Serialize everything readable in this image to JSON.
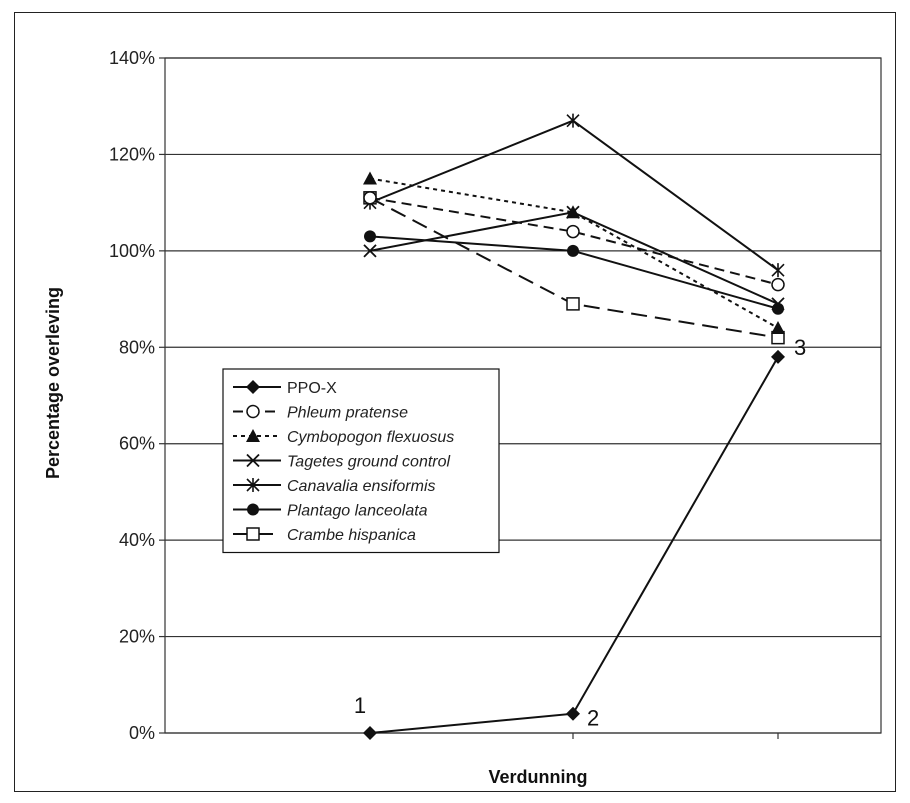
{
  "chart_data": {
    "type": "line",
    "xlabel": "Verdunning",
    "ylabel": "Percentage overleving",
    "x": [
      1,
      2,
      3
    ],
    "ylim": [
      0,
      140
    ],
    "yticks": [
      "0%",
      "20%",
      "40%",
      "60%",
      "80%",
      "100%",
      "120%",
      "140%"
    ],
    "grid": true,
    "legend_position": "center-left",
    "point_labels": [
      "1",
      "2",
      "3"
    ],
    "series": [
      {
        "name": "PPO-X",
        "values": [
          0,
          4,
          78
        ],
        "marker": "diamond-filled",
        "dash": "solid",
        "italic": false
      },
      {
        "name": "Phleum pratense",
        "values": [
          111,
          104,
          93
        ],
        "marker": "circle-open",
        "dash": "dash",
        "italic": true
      },
      {
        "name": "Cymbopogon flexuosus",
        "values": [
          115,
          108,
          84
        ],
        "marker": "triangle-filled",
        "dash": "dot",
        "italic": true
      },
      {
        "name": "Tagetes ground control",
        "values": [
          100,
          108,
          89
        ],
        "marker": "x",
        "dash": "solid",
        "italic": true
      },
      {
        "name": "Canavalia ensiformis",
        "values": [
          110,
          127,
          96
        ],
        "marker": "star",
        "dash": "solid",
        "italic": true
      },
      {
        "name": "Plantago lanceolata",
        "values": [
          103,
          100,
          88
        ],
        "marker": "circle-filled",
        "dash": "solid",
        "italic": true
      },
      {
        "name": "Crambe hispanica",
        "values": [
          111,
          89,
          82
        ],
        "marker": "square-open",
        "dash": "longdash",
        "italic": true
      }
    ]
  },
  "colors": {
    "line": "#111111",
    "grid": "#333333",
    "frame": "#222222"
  }
}
